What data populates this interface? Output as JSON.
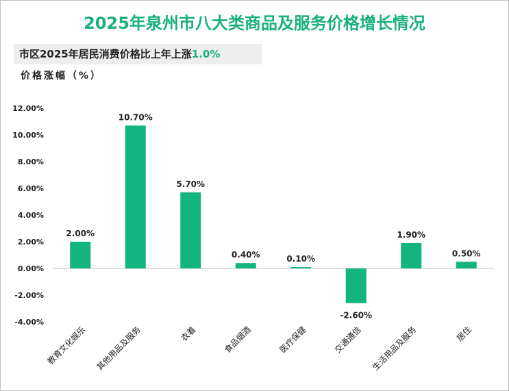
{
  "title": "2025年泉州市八大类商品及服务价格增长情况",
  "subtitle": {
    "text": "市区2025年居民消费价格比上年上涨",
    "highlight": "1.0%"
  },
  "colors": {
    "bar": "#12b47f",
    "title": "#19b07b"
  },
  "chart_data": {
    "type": "bar",
    "title": "2025年泉州市八大类商品及服务价格增长情况",
    "ylabel": "价格涨幅（%）",
    "xlabel": "",
    "categories": [
      "教育文化娱乐",
      "其他用品及服务",
      "衣着",
      "食品烟酒",
      "医疗保健",
      "交通通信",
      "生活用品及服务",
      "居住"
    ],
    "values": [
      2.0,
      10.7,
      5.7,
      0.4,
      0.1,
      -2.6,
      1.9,
      0.5
    ],
    "value_labels": [
      "2.00%",
      "10.70%",
      "5.70%",
      "0.40%",
      "0.10%",
      "-2.60%",
      "1.90%",
      "0.50%"
    ],
    "ylim": [
      -4,
      12
    ],
    "yticks": [
      -4,
      -2,
      0,
      2,
      4,
      6,
      8,
      10,
      12
    ],
    "ytick_labels": [
      "-4.00%",
      "-2.00%",
      "0.00%",
      "2.00%",
      "4.00%",
      "6.00%",
      "8.00%",
      "10.00%",
      "12.00%"
    ],
    "grid": false,
    "legend": "none"
  }
}
